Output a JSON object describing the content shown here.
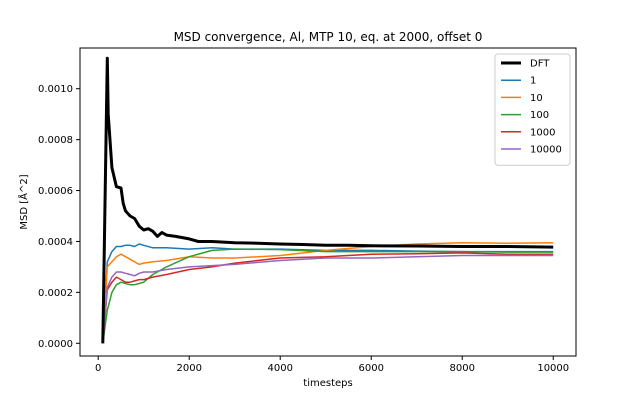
{
  "chart_data": {
    "type": "line",
    "title": "MSD convergence, Al, MTP 10, eq. at 2000, offset 0",
    "xlabel": "timesteps",
    "ylabel": "MSD [Å^2]",
    "xlim": [
      -400,
      10500
    ],
    "ylim": [
      -5e-05,
      0.00116
    ],
    "xticks": [
      0,
      2000,
      4000,
      6000,
      8000,
      10000
    ],
    "xtick_labels": [
      "0",
      "2000",
      "4000",
      "6000",
      "8000",
      "10000"
    ],
    "yticks": [
      0.0,
      0.0002,
      0.0004,
      0.0006,
      0.0008,
      0.001
    ],
    "ytick_labels": [
      "0.0000",
      "0.0002",
      "0.0004",
      "0.0006",
      "0.0008",
      "0.0010"
    ],
    "grid": false,
    "legend_position": "top-right",
    "series": [
      {
        "name": "DFT",
        "color": "#000000",
        "x": [
          100,
          200,
          220,
          300,
          400,
          500,
          550,
          600,
          700,
          800,
          900,
          1000,
          1100,
          1200,
          1300,
          1400,
          1500,
          1700,
          2000,
          2200,
          2500,
          3000,
          3500,
          4000,
          4500,
          5000,
          5500,
          6000,
          7000,
          8000,
          9000,
          10000
        ],
        "y": [
          0.0,
          0.00112,
          0.0009,
          0.00069,
          0.000615,
          0.00061,
          0.00055,
          0.00052,
          0.0005,
          0.00049,
          0.00046,
          0.000445,
          0.00045,
          0.00044,
          0.00042,
          0.000435,
          0.000425,
          0.00042,
          0.00041,
          0.0004,
          0.0004,
          0.000395,
          0.000393,
          0.00039,
          0.000388,
          0.000385,
          0.000385,
          0.000383,
          0.000382,
          0.00038,
          0.00038,
          0.000378
        ]
      },
      {
        "name": "1",
        "color": "#1f77b4",
        "x": [
          100,
          200,
          300,
          400,
          500,
          600,
          700,
          800,
          900,
          1000,
          1200,
          1500,
          2000,
          2500,
          3000,
          4000,
          5000,
          6000,
          7000,
          8000,
          9000,
          10000
        ],
        "y": [
          0.0,
          0.00032,
          0.00036,
          0.00038,
          0.00038,
          0.000385,
          0.000385,
          0.00038,
          0.00039,
          0.000385,
          0.000375,
          0.000375,
          0.00037,
          0.000375,
          0.00037,
          0.00037,
          0.000365,
          0.000365,
          0.000362,
          0.00036,
          0.00036,
          0.00036
        ]
      },
      {
        "name": "10",
        "color": "#ff7f0e",
        "x": [
          100,
          200,
          300,
          400,
          500,
          600,
          700,
          800,
          900,
          1000,
          1200,
          1500,
          2000,
          2500,
          3000,
          4000,
          5000,
          6000,
          7000,
          8000,
          9000,
          10000
        ],
        "y": [
          0.0,
          0.0003,
          0.00032,
          0.00034,
          0.00035,
          0.00034,
          0.00033,
          0.00032,
          0.00031,
          0.000315,
          0.00032,
          0.000325,
          0.00034,
          0.000335,
          0.000335,
          0.000345,
          0.000365,
          0.00038,
          0.00039,
          0.000395,
          0.000393,
          0.000395
        ]
      },
      {
        "name": "100",
        "color": "#2ca02c",
        "x": [
          100,
          200,
          300,
          400,
          500,
          600,
          700,
          800,
          900,
          1000,
          1200,
          1500,
          2000,
          2500,
          3000,
          4000,
          5000,
          6000,
          7000,
          8000,
          9000,
          10000
        ],
        "y": [
          0.0,
          0.00013,
          0.0002,
          0.00023,
          0.00024,
          0.000235,
          0.00023,
          0.00023,
          0.000235,
          0.00024,
          0.00027,
          0.0003,
          0.00034,
          0.000365,
          0.00037,
          0.000368,
          0.00036,
          0.00036,
          0.00036,
          0.00036,
          0.000358,
          0.000358
        ]
      },
      {
        "name": "1000",
        "color": "#d62728",
        "x": [
          100,
          200,
          300,
          400,
          500,
          600,
          700,
          800,
          900,
          1000,
          1200,
          1500,
          2000,
          2500,
          3000,
          4000,
          5000,
          6000,
          7000,
          8000,
          9000,
          10000
        ],
        "y": [
          0.0,
          0.00021,
          0.00024,
          0.00026,
          0.00025,
          0.00024,
          0.00024,
          0.000245,
          0.00025,
          0.00025,
          0.00026,
          0.00027,
          0.00029,
          0.0003,
          0.000315,
          0.000335,
          0.00034,
          0.00035,
          0.000352,
          0.000355,
          0.00035,
          0.00035
        ]
      },
      {
        "name": "10000",
        "color": "#9467bd",
        "x": [
          100,
          200,
          300,
          400,
          500,
          600,
          700,
          800,
          900,
          1000,
          1200,
          1500,
          2000,
          2500,
          3000,
          4000,
          5000,
          6000,
          7000,
          8000,
          9000,
          10000
        ],
        "y": [
          0.0,
          0.00022,
          0.00026,
          0.00028,
          0.00028,
          0.000275,
          0.00027,
          0.000265,
          0.000275,
          0.00028,
          0.00028,
          0.00029,
          0.0003,
          0.000305,
          0.00031,
          0.000325,
          0.000335,
          0.000335,
          0.00034,
          0.000345,
          0.000345,
          0.000345
        ]
      }
    ]
  }
}
